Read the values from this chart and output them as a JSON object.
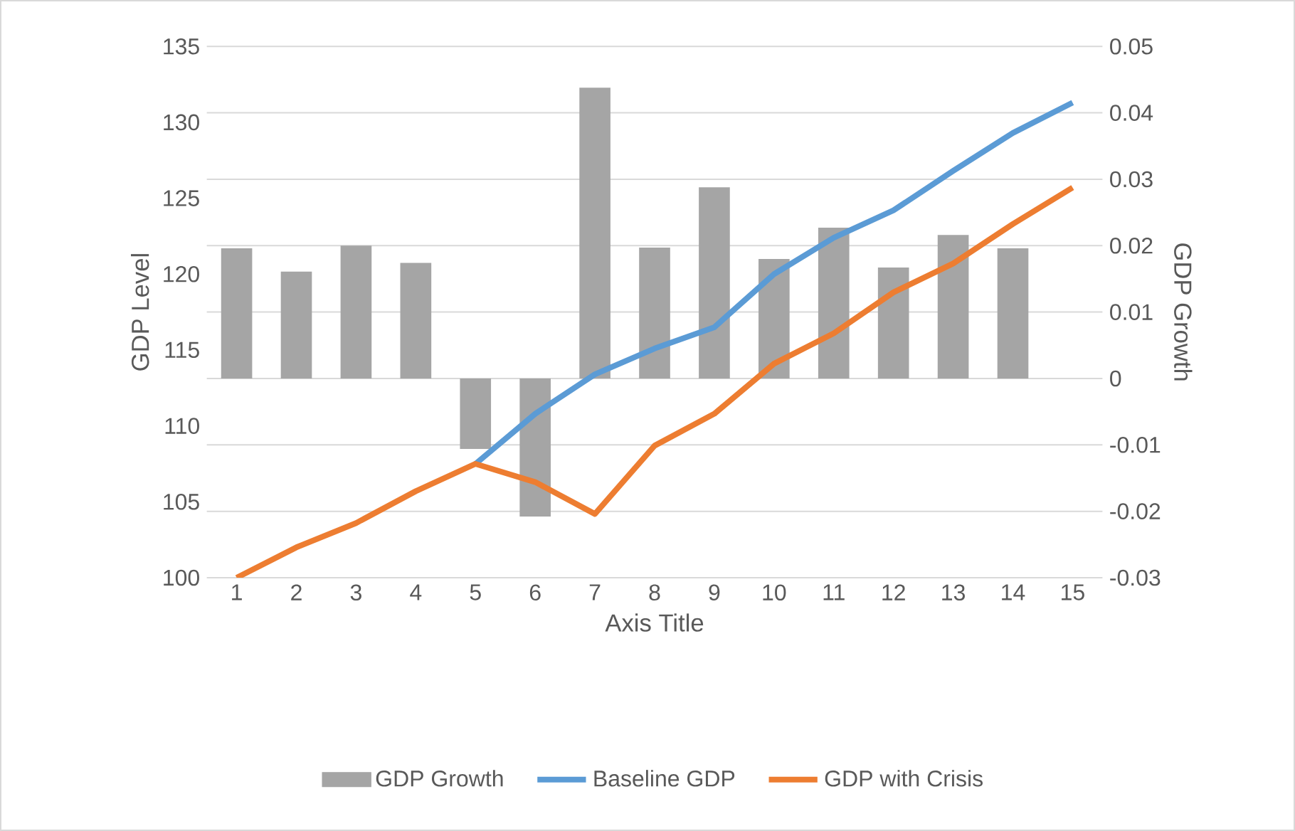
{
  "chart_data": {
    "type": "line",
    "xlabel": "Axis Title",
    "ylabel": "GDP Level",
    "y2label": "GDP Growth",
    "categories": [
      "1",
      "2",
      "3",
      "4",
      "5",
      "6",
      "7",
      "8",
      "9",
      "10",
      "11",
      "12",
      "13",
      "14",
      "15"
    ],
    "series": [
      {
        "name": "GDP Growth",
        "type": "bar",
        "axis": "y2",
        "color": "#a5a5a5",
        "values": [
          0.0196,
          0.0161,
          0.02,
          0.0174,
          -0.0106,
          -0.0208,
          0.0438,
          0.0197,
          0.0288,
          0.018,
          0.0227,
          0.0167,
          0.0216,
          0.0196,
          null
        ]
      },
      {
        "name": "Baseline GDP",
        "color": "#5b9bd5",
        "values": [
          null,
          null,
          null,
          null,
          107.5,
          110.8,
          113.4,
          115.1,
          116.5,
          120.0,
          122.4,
          124.2,
          126.8,
          129.3,
          131.3
        ]
      },
      {
        "name": "GDP with Crisis",
        "color": "#ed7d31",
        "values": [
          100,
          102.0,
          103.6,
          105.7,
          107.5,
          106.3,
          104.2,
          108.7,
          110.8,
          114.1,
          116.1,
          118.8,
          120.7,
          123.3,
          125.7
        ]
      }
    ],
    "ylim": [
      100,
      135
    ],
    "yticks": [
      100,
      105,
      110,
      115,
      120,
      125,
      130,
      135
    ],
    "y2lim": [
      -0.03,
      0.05
    ],
    "y2ticks": [
      -0.03,
      -0.02,
      -0.01,
      0,
      0.01,
      0.02,
      0.03,
      0.04,
      0.05
    ],
    "grid": "y",
    "legend": "bottom",
    "marker": "none",
    "line_style": "solid"
  }
}
